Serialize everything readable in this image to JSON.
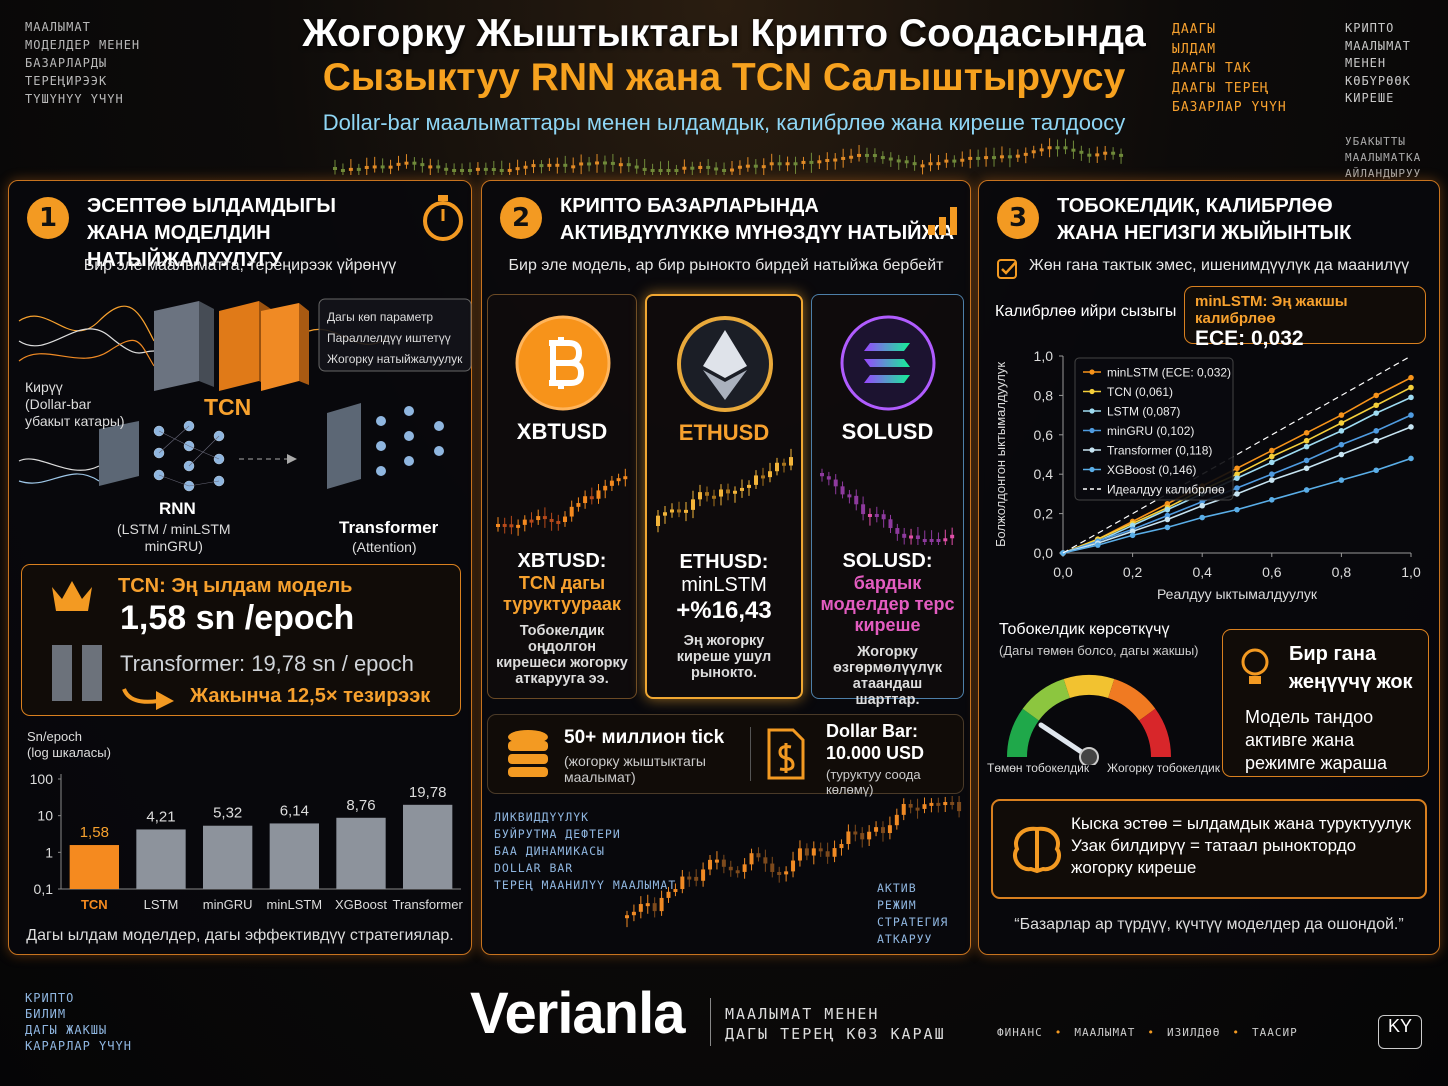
{
  "header": {
    "title_line1": "Жогорку Жыштыктагы Крипто Соодасында",
    "title_line2": "Сызыктуу RNN жана TCN Салыштыруусу",
    "subtitle": "Dollar-bar маалыматтары менен ылдамдык, калибрлөө жана киреше талдоосу",
    "corner_left": [
      "МААЛЫМАТ",
      "МОДЕЛДЕР МЕНЕН",
      "БАЗАРЛАРДЫ",
      "ТЕРЕҢИРЭЭК",
      "ТҮШҮНҮҮ ҮЧҮН"
    ],
    "corner_mid": [
      "ДААГЫ",
      "ЫЛДАМ",
      "ДААГЫ ТАК",
      "ДААГЫ ТЕРЕҢ",
      "БАЗАРЛАР ҮЧҮН"
    ],
    "corner_right": [
      "КРИПТО",
      "МААЛЫМАТ",
      "МЕНЕН",
      "КӨБҮРӨӨК",
      "КИРЕШЕ"
    ],
    "corner_right2": [
      "УБАКЫТТЫ",
      "МААЛЫМАТКА",
      "АЙЛАНДЫРУУ"
    ]
  },
  "panel1": {
    "number": "1",
    "title": [
      "ЭСЕПТӨӨ ЫЛДАМДЫГЫ",
      "ЖАНА МОДЕЛДИН НАТЫЙЖАЛУУЛУГУ"
    ],
    "lead": "Бир эле маалыматта, тереңирээк үйрөнүү",
    "tcn_notes": [
      "Дагы көп параметр",
      "Параллелдүү иштетүү",
      "Жогорку натыйжалуулук"
    ],
    "tcn_label": "TCN",
    "input_label": [
      "Кирүү",
      "(Dollar-bar",
      "убакыт катары)"
    ],
    "rnn_label": "RNN",
    "rnn_sub": [
      "(LSTM / minLSTM",
      "minGRU)"
    ],
    "transformer_label": "Transformer",
    "transformer_sub": "(Attention)",
    "highlight": {
      "title": "TCN: Эң ылдам модель",
      "value": "1,58 sn /epoch",
      "compare": "Transformer: 19,78 sn / epoch",
      "speedup": "Жакынча 12,5× тезирээк"
    },
    "chart": {
      "type": "bar",
      "ylabel": [
        "Sn/epoch",
        "(log шкаласы)"
      ],
      "log_scale": true,
      "categories": [
        "TCN",
        "LSTM",
        "minGRU",
        "minLSTM",
        "XGBoost",
        "Transformer"
      ],
      "values": [
        1.58,
        4.21,
        5.32,
        6.14,
        8.76,
        19.78
      ],
      "value_labels": [
        "1,58",
        "4,21",
        "5,32",
        "6,14",
        "8,76",
        "19,78"
      ],
      "colors": [
        "#f58a1f",
        "#8d939c",
        "#8d939c",
        "#8d939c",
        "#8d939c",
        "#8d939c"
      ],
      "ylim": [
        0.1,
        100
      ],
      "yticks": [
        {
          "value": 0.1,
          "label": "0,1"
        },
        1,
        10,
        100
      ]
    },
    "footer": "Дагы ылдам моделдер, дагы эффективдүү стратегиялар."
  },
  "panel2": {
    "number": "2",
    "title": [
      "КРИПТО БАЗАРЛАРЫНДА",
      "АКТИВДҮҮЛҮККӨ МҮНӨЗДҮҮ НАТЫЙЖА"
    ],
    "lead": "Бир эле модель, ар бир рынокто бирдей натыйжа бербейт",
    "markets": [
      {
        "ticker": "XBTUSD",
        "heading": "XBTUSD:",
        "result": "TCN дагы туруктуураак",
        "note": "Тобокелдик оңдолгон кирешеси жогорку аткарууга ээ."
      },
      {
        "ticker": "ETHUSD",
        "heading": "ETHUSD:",
        "result": "minLSTM",
        "value": "+%16,43",
        "note": "Эң жогорку киреше ушул рынокто."
      },
      {
        "ticker": "SOLUSD",
        "heading": "SOLUSD:",
        "result": "бардык моделдер терс киреше",
        "note": "Жогорку өзгөрмөлүүлүк атаандаш шарттар."
      }
    ],
    "stats": [
      {
        "value": "50+ миллион tick",
        "note": "(жогорку жыштыктагы маалымат)"
      },
      {
        "title": "Dollar Bar:",
        "value": "10.000 USD",
        "note": "(туруктуу соода көлөмү)"
      }
    ],
    "words_left": [
      "ЛИКВИДДҮҮЛҮК",
      "БУЙРУТМА ДЕФТЕРИ",
      "БАА ДИНАМИКАСЫ",
      "DOLLAR BAR",
      "ТЕРЕҢ МААНИЛҮҮ МААЛЫМАТ"
    ],
    "words_right": [
      "АКТИВ",
      "РЕЖИМ",
      "СТРАТЕГИЯ",
      "АТКАРУУ"
    ]
  },
  "panel3": {
    "number": "3",
    "title": [
      "ТОБОКЕЛДИК, КАЛИБРЛӨӨ",
      "ЖАНА НЕГИЗГИ ЖЫЙЫНТЫК"
    ],
    "lead": "Жөн гана тактык эмес, ишенимдүүлүк да маанилүү",
    "chart_title": "Калибрлөө ийри сызыгы",
    "badge": {
      "label": "minLSTM: Эң жакшы калибрлөө",
      "value": "ECE: 0,032"
    },
    "chart": {
      "type": "line",
      "xlabel": "Реалдуу ыктымалдуулук",
      "ylabel": "Болжолдонгон ыктымалдуулук",
      "x": [
        0,
        0.1,
        0.2,
        0.3,
        0.4,
        0.5,
        0.6,
        0.7,
        0.8,
        0.9,
        1.0
      ],
      "series": [
        {
          "name": "minLSTM (ECE: 0,032)",
          "color": "#f7931a",
          "values": [
            0,
            0.07,
            0.16,
            0.25,
            0.34,
            0.43,
            0.52,
            0.61,
            0.7,
            0.8,
            0.89
          ]
        },
        {
          "name": "TCN (0,061)",
          "color": "#f5cf3a",
          "values": [
            0,
            0.07,
            0.15,
            0.23,
            0.32,
            0.4,
            0.49,
            0.57,
            0.66,
            0.75,
            0.84
          ]
        },
        {
          "name": "LSTM (0,087)",
          "color": "#9fdcf2",
          "values": [
            0,
            0.06,
            0.14,
            0.22,
            0.3,
            0.38,
            0.46,
            0.54,
            0.62,
            0.71,
            0.79
          ]
        },
        {
          "name": "minGRU (0,102)",
          "color": "#4f9be0",
          "values": [
            0,
            0.06,
            0.12,
            0.19,
            0.26,
            0.33,
            0.4,
            0.47,
            0.55,
            0.62,
            0.7
          ]
        },
        {
          "name": "Transformer (0,118)",
          "color": "#c7e4f2",
          "values": [
            0,
            0.05,
            0.11,
            0.17,
            0.24,
            0.3,
            0.37,
            0.43,
            0.5,
            0.57,
            0.64
          ]
        },
        {
          "name": "XGBoost (0,146)",
          "color": "#5aaee8",
          "values": [
            0,
            0.04,
            0.09,
            0.13,
            0.18,
            0.22,
            0.27,
            0.32,
            0.37,
            0.42,
            0.48
          ]
        },
        {
          "name": "Идеалдуу калибрлөө",
          "color": "#ffffff",
          "style": "dashed",
          "values": [
            0,
            0.1,
            0.2,
            0.3,
            0.4,
            0.5,
            0.6,
            0.7,
            0.8,
            0.9,
            1.0
          ]
        }
      ],
      "xlim": [
        0,
        1
      ],
      "ylim": [
        0,
        1
      ],
      "xticks": [
        {
          "value": 0,
          "label": "0,0"
        },
        {
          "value": 0.2,
          "label": "0,2"
        },
        {
          "value": 0.4,
          "label": "0,4"
        },
        {
          "value": 0.6,
          "label": "0,6"
        },
        {
          "value": 0.8,
          "label": "0,8"
        },
        {
          "value": 1,
          "label": "1,0"
        }
      ],
      "yticks": [
        {
          "value": 0,
          "label": "0,0"
        },
        {
          "value": 0.2,
          "label": "0,2"
        },
        {
          "value": 0.4,
          "label": "0,4"
        },
        {
          "value": 0.6,
          "label": "0,6"
        },
        {
          "value": 0.8,
          "label": "0,8"
        },
        {
          "value": 1,
          "label": "1,0"
        }
      ],
      "legend": "upper left"
    },
    "gauge": {
      "title": "Тобокелдик көрсөткүчү",
      "sub": "(Дагы төмөн болсо, дагы жакшы)",
      "low": "Төмөн тобокелдик",
      "high": "Жогорку тобокелдик"
    },
    "tip": {
      "title": "Бир гана жеңүүчү жок",
      "body": "Модель тандоо активге жана режимге жараша"
    },
    "summary": [
      "Кыска эстөө = ылдамдык жана туруктуулук",
      "Узак билдирүү = татаал рыноктордо жогорку киреше"
    ],
    "quote": "“Базарлар ар түрдүү, күчтүү моделдер да ошондой.”"
  },
  "footer": {
    "words": [
      "КРИПТО",
      "БИЛИМ",
      "ДАГЫ ЖАКШЫ",
      "КАРАРЛАР ҮЧҮН"
    ],
    "brand": "Verianla",
    "tagline": [
      "МААЛЫМАТ МЕНЕН",
      "ДАГЫ ТЕРЕҢ КӨЗ КАРАШ"
    ],
    "tags": [
      "ФИНАНС",
      "МААЛЫМАТ",
      "ИЗИЛДӨӨ",
      "ТААСИР"
    ],
    "lang": "KY"
  }
}
